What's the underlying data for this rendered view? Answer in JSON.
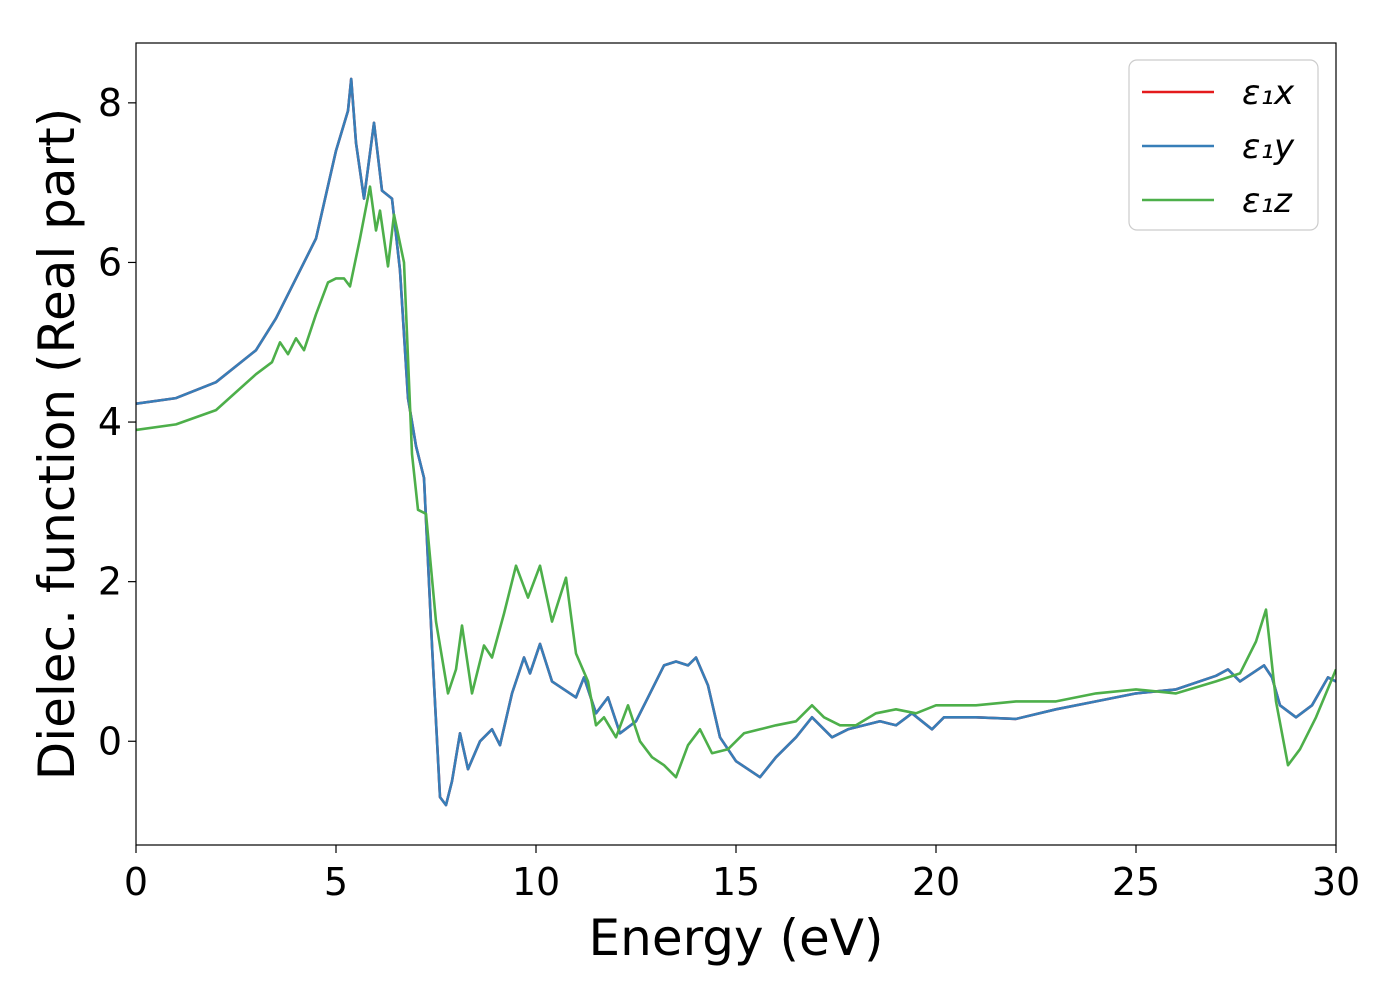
{
  "chart_data": {
    "type": "line",
    "xlabel": "Energy (eV)",
    "ylabel": "Dielec. function (Real part)",
    "xlim": [
      0,
      30
    ],
    "ylim": [
      -1.3,
      8.75
    ],
    "xticks": [
      0,
      5,
      10,
      15,
      20,
      25,
      30
    ],
    "yticks": [
      0,
      2,
      4,
      6,
      8
    ],
    "grid": false,
    "legend_position": "top-right",
    "series": [
      {
        "name": "ε₁x",
        "color": "#e41a1c",
        "points": [
          [
            0,
            4.23
          ],
          [
            1,
            4.3
          ],
          [
            2,
            4.5
          ],
          [
            3,
            4.9
          ],
          [
            3.5,
            5.3
          ],
          [
            4,
            5.8
          ],
          [
            4.5,
            6.3
          ],
          [
            5,
            7.4
          ],
          [
            5.3,
            7.9
          ],
          [
            5.38,
            8.3
          ],
          [
            5.5,
            7.5
          ],
          [
            5.7,
            6.8
          ],
          [
            5.95,
            7.75
          ],
          [
            6.15,
            6.9
          ],
          [
            6.4,
            6.8
          ],
          [
            6.6,
            5.9
          ],
          [
            6.8,
            4.3
          ],
          [
            7.0,
            3.7
          ],
          [
            7.2,
            3.3
          ],
          [
            7.4,
            1.2
          ],
          [
            7.6,
            -0.7
          ],
          [
            7.75,
            -0.8
          ],
          [
            7.9,
            -0.5
          ],
          [
            8.1,
            0.1
          ],
          [
            8.3,
            -0.35
          ],
          [
            8.6,
            0.0
          ],
          [
            8.9,
            0.15
          ],
          [
            9.1,
            -0.05
          ],
          [
            9.4,
            0.6
          ],
          [
            9.7,
            1.05
          ],
          [
            9.85,
            0.85
          ],
          [
            10.1,
            1.22
          ],
          [
            10.4,
            0.75
          ],
          [
            10.7,
            0.65
          ],
          [
            11.0,
            0.55
          ],
          [
            11.2,
            0.8
          ],
          [
            11.5,
            0.35
          ],
          [
            11.8,
            0.55
          ],
          [
            12.1,
            0.1
          ],
          [
            12.5,
            0.25
          ],
          [
            12.8,
            0.55
          ],
          [
            13.2,
            0.95
          ],
          [
            13.5,
            1.0
          ],
          [
            13.8,
            0.95
          ],
          [
            14.0,
            1.05
          ],
          [
            14.3,
            0.7
          ],
          [
            14.6,
            0.05
          ],
          [
            15.0,
            -0.25
          ],
          [
            15.6,
            -0.45
          ],
          [
            16.0,
            -0.2
          ],
          [
            16.5,
            0.05
          ],
          [
            16.9,
            0.3
          ],
          [
            17.4,
            0.05
          ],
          [
            17.8,
            0.15
          ],
          [
            18.2,
            0.2
          ],
          [
            18.6,
            0.25
          ],
          [
            19.0,
            0.2
          ],
          [
            19.4,
            0.35
          ],
          [
            19.9,
            0.15
          ],
          [
            20.2,
            0.3
          ],
          [
            21.0,
            0.3
          ],
          [
            22.0,
            0.28
          ],
          [
            23.0,
            0.4
          ],
          [
            24.0,
            0.5
          ],
          [
            25.0,
            0.6
          ],
          [
            26.0,
            0.65
          ],
          [
            27.0,
            0.82
          ],
          [
            27.3,
            0.9
          ],
          [
            27.6,
            0.75
          ],
          [
            28.2,
            0.95
          ],
          [
            28.4,
            0.8
          ],
          [
            28.6,
            0.45
          ],
          [
            29.0,
            0.3
          ],
          [
            29.4,
            0.45
          ],
          [
            29.8,
            0.8
          ],
          [
            30.0,
            0.75
          ]
        ]
      },
      {
        "name": "ε₁y",
        "color": "#377eb8",
        "points": [
          [
            0,
            4.23
          ],
          [
            1,
            4.3
          ],
          [
            2,
            4.5
          ],
          [
            3,
            4.9
          ],
          [
            3.5,
            5.3
          ],
          [
            4,
            5.8
          ],
          [
            4.5,
            6.3
          ],
          [
            5,
            7.4
          ],
          [
            5.3,
            7.9
          ],
          [
            5.38,
            8.3
          ],
          [
            5.5,
            7.5
          ],
          [
            5.7,
            6.8
          ],
          [
            5.95,
            7.75
          ],
          [
            6.15,
            6.9
          ],
          [
            6.4,
            6.8
          ],
          [
            6.6,
            5.9
          ],
          [
            6.8,
            4.3
          ],
          [
            7.0,
            3.7
          ],
          [
            7.2,
            3.3
          ],
          [
            7.4,
            1.2
          ],
          [
            7.6,
            -0.7
          ],
          [
            7.75,
            -0.8
          ],
          [
            7.9,
            -0.5
          ],
          [
            8.1,
            0.1
          ],
          [
            8.3,
            -0.35
          ],
          [
            8.6,
            0.0
          ],
          [
            8.9,
            0.15
          ],
          [
            9.1,
            -0.05
          ],
          [
            9.4,
            0.6
          ],
          [
            9.7,
            1.05
          ],
          [
            9.85,
            0.85
          ],
          [
            10.1,
            1.22
          ],
          [
            10.4,
            0.75
          ],
          [
            10.7,
            0.65
          ],
          [
            11.0,
            0.55
          ],
          [
            11.2,
            0.8
          ],
          [
            11.5,
            0.35
          ],
          [
            11.8,
            0.55
          ],
          [
            12.1,
            0.1
          ],
          [
            12.5,
            0.25
          ],
          [
            12.8,
            0.55
          ],
          [
            13.2,
            0.95
          ],
          [
            13.5,
            1.0
          ],
          [
            13.8,
            0.95
          ],
          [
            14.0,
            1.05
          ],
          [
            14.3,
            0.7
          ],
          [
            14.6,
            0.05
          ],
          [
            15.0,
            -0.25
          ],
          [
            15.6,
            -0.45
          ],
          [
            16.0,
            -0.2
          ],
          [
            16.5,
            0.05
          ],
          [
            16.9,
            0.3
          ],
          [
            17.4,
            0.05
          ],
          [
            17.8,
            0.15
          ],
          [
            18.2,
            0.2
          ],
          [
            18.6,
            0.25
          ],
          [
            19.0,
            0.2
          ],
          [
            19.4,
            0.35
          ],
          [
            19.9,
            0.15
          ],
          [
            20.2,
            0.3
          ],
          [
            21.0,
            0.3
          ],
          [
            22.0,
            0.28
          ],
          [
            23.0,
            0.4
          ],
          [
            24.0,
            0.5
          ],
          [
            25.0,
            0.6
          ],
          [
            26.0,
            0.65
          ],
          [
            27.0,
            0.82
          ],
          [
            27.3,
            0.9
          ],
          [
            27.6,
            0.75
          ],
          [
            28.2,
            0.95
          ],
          [
            28.4,
            0.8
          ],
          [
            28.6,
            0.45
          ],
          [
            29.0,
            0.3
          ],
          [
            29.4,
            0.45
          ],
          [
            29.8,
            0.8
          ],
          [
            30.0,
            0.75
          ]
        ]
      },
      {
        "name": "ε₁z",
        "color": "#4daf4a",
        "points": [
          [
            0,
            3.9
          ],
          [
            1,
            3.97
          ],
          [
            2,
            4.15
          ],
          [
            3,
            4.6
          ],
          [
            3.4,
            4.75
          ],
          [
            3.6,
            5.0
          ],
          [
            3.8,
            4.85
          ],
          [
            4.0,
            5.05
          ],
          [
            4.2,
            4.9
          ],
          [
            4.5,
            5.35
          ],
          [
            4.8,
            5.75
          ],
          [
            5.0,
            5.8
          ],
          [
            5.2,
            5.8
          ],
          [
            5.35,
            5.7
          ],
          [
            5.6,
            6.3
          ],
          [
            5.85,
            6.95
          ],
          [
            6.0,
            6.4
          ],
          [
            6.1,
            6.65
          ],
          [
            6.3,
            5.95
          ],
          [
            6.45,
            6.6
          ],
          [
            6.7,
            6.0
          ],
          [
            6.9,
            3.6
          ],
          [
            7.05,
            2.9
          ],
          [
            7.25,
            2.85
          ],
          [
            7.5,
            1.5
          ],
          [
            7.8,
            0.6
          ],
          [
            8.0,
            0.9
          ],
          [
            8.15,
            1.45
          ],
          [
            8.4,
            0.6
          ],
          [
            8.7,
            1.2
          ],
          [
            8.9,
            1.05
          ],
          [
            9.2,
            1.6
          ],
          [
            9.5,
            2.2
          ],
          [
            9.8,
            1.8
          ],
          [
            10.1,
            2.2
          ],
          [
            10.4,
            1.5
          ],
          [
            10.75,
            2.05
          ],
          [
            11.0,
            1.1
          ],
          [
            11.3,
            0.75
          ],
          [
            11.5,
            0.2
          ],
          [
            11.7,
            0.3
          ],
          [
            12.0,
            0.05
          ],
          [
            12.3,
            0.45
          ],
          [
            12.6,
            0.0
          ],
          [
            12.9,
            -0.2
          ],
          [
            13.2,
            -0.3
          ],
          [
            13.5,
            -0.45
          ],
          [
            13.8,
            -0.05
          ],
          [
            14.1,
            0.15
          ],
          [
            14.4,
            -0.15
          ],
          [
            14.8,
            -0.1
          ],
          [
            15.2,
            0.1
          ],
          [
            15.6,
            0.15
          ],
          [
            16.0,
            0.2
          ],
          [
            16.5,
            0.25
          ],
          [
            16.9,
            0.45
          ],
          [
            17.2,
            0.3
          ],
          [
            17.6,
            0.2
          ],
          [
            18.0,
            0.2
          ],
          [
            18.5,
            0.35
          ],
          [
            19.0,
            0.4
          ],
          [
            19.5,
            0.35
          ],
          [
            20.0,
            0.45
          ],
          [
            21.0,
            0.45
          ],
          [
            22.0,
            0.5
          ],
          [
            23.0,
            0.5
          ],
          [
            24.0,
            0.6
          ],
          [
            25.0,
            0.65
          ],
          [
            26.0,
            0.6
          ],
          [
            27.0,
            0.75
          ],
          [
            27.6,
            0.85
          ],
          [
            28.0,
            1.25
          ],
          [
            28.25,
            1.65
          ],
          [
            28.5,
            0.5
          ],
          [
            28.8,
            -0.3
          ],
          [
            29.1,
            -0.1
          ],
          [
            29.5,
            0.3
          ],
          [
            30.0,
            0.9
          ]
        ]
      }
    ]
  }
}
